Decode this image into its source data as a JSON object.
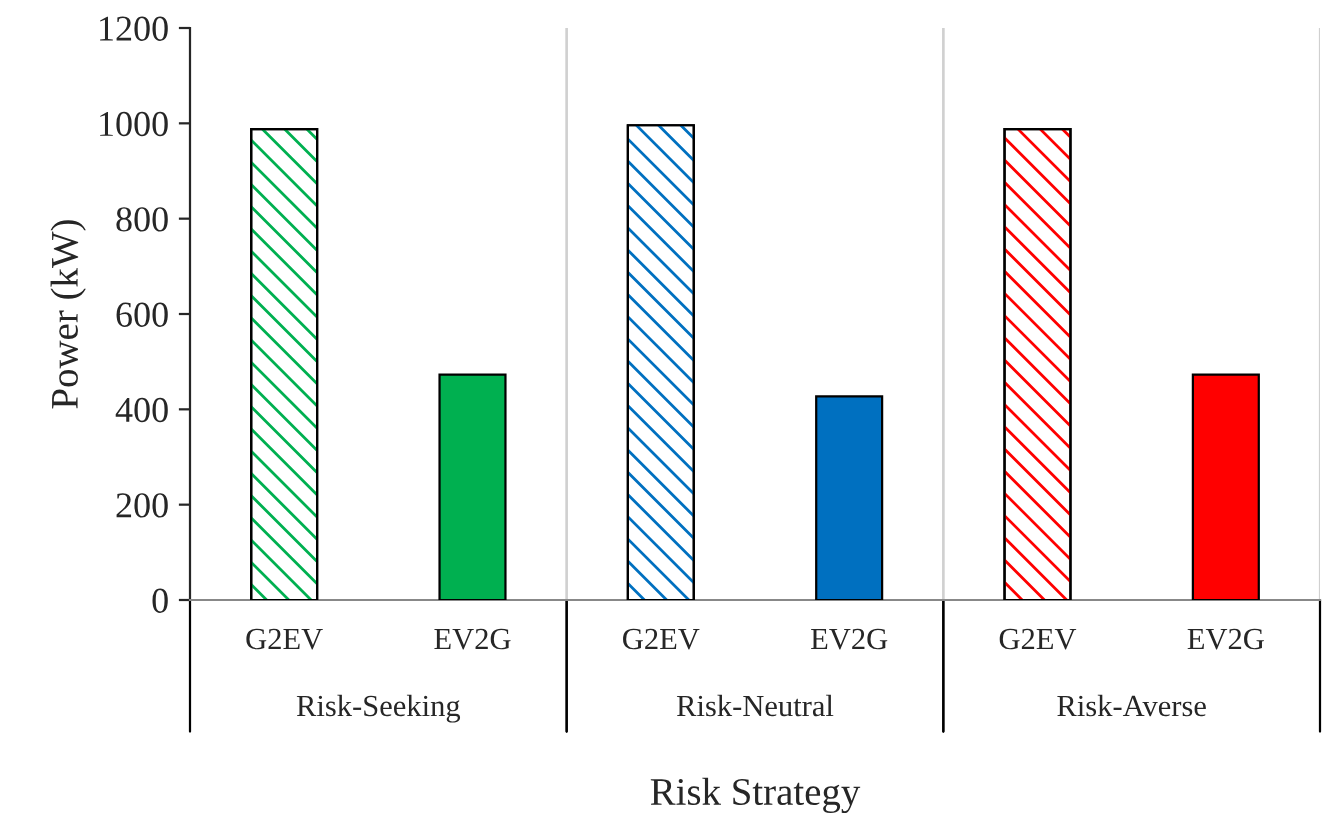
{
  "chart_data": {
    "type": "bar",
    "categories": [
      "G2EV",
      "EV2G",
      "G2EV",
      "EV2G",
      "G2EV",
      "EV2G"
    ],
    "values": [
      988,
      473,
      996,
      427,
      988,
      473
    ],
    "colors": [
      "#00b050",
      "#00b050",
      "#0070c0",
      "#0070c0",
      "#ff0000",
      "#ff0000"
    ],
    "ylim": [
      0,
      1200
    ],
    "yticks": [
      0,
      200,
      400,
      600,
      800,
      1000,
      1200
    ],
    "ylabel": "Power (kW)",
    "xlabel": "Risk Strategy",
    "annotations": [
      "Risk-Seeking",
      "Risk-Neutral",
      "Risk-Averse"
    ]
  }
}
